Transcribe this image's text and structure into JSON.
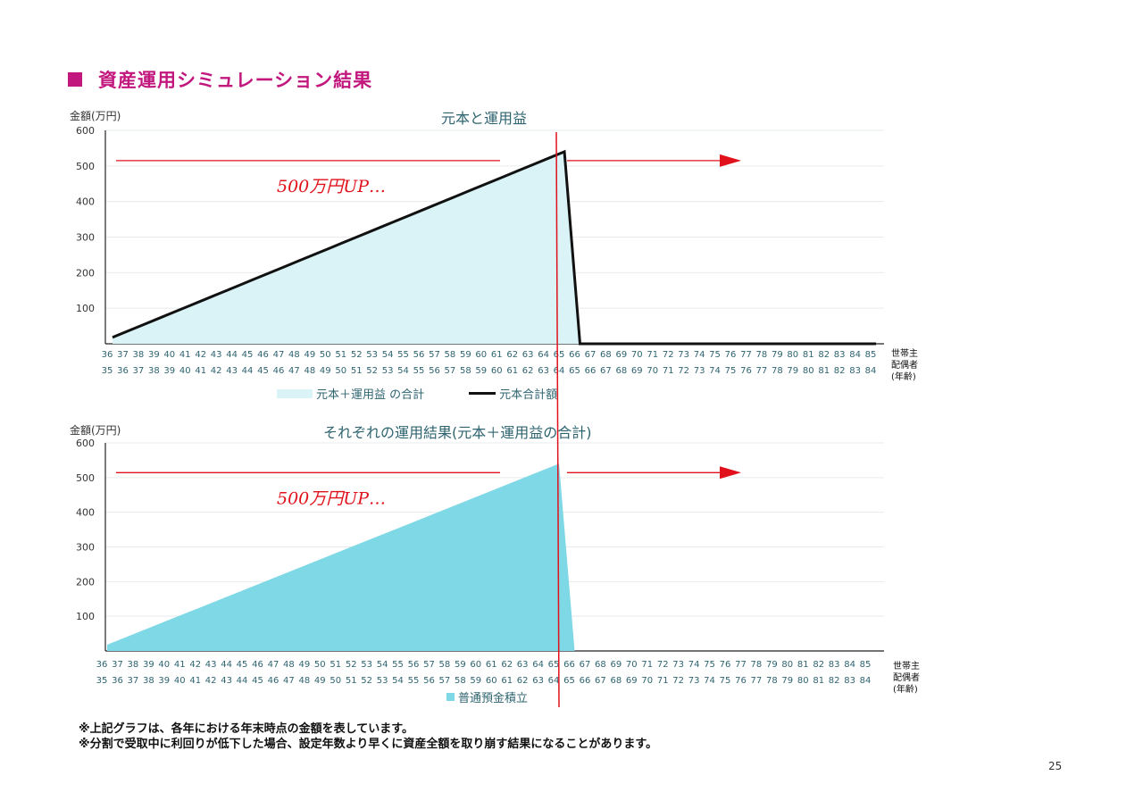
{
  "page": {
    "title": "資産運用シミュレーション結果",
    "page_number": "25",
    "notes": [
      "※上記グラフは、各年における年末時点の金額を表しています。",
      "※分割で受取中に利回りが低下した場合、設定年数より早くに資産全額を取り崩す結果になることがあります。"
    ],
    "age_axis_caption": [
      "世帯主",
      "配偶者",
      "(年齢)"
    ],
    "annotation": "500万円UP…",
    "annotation_color": "#e0111b",
    "accent_color": "#c2187e"
  },
  "chart_data": [
    {
      "type": "area",
      "title": "元本と運用益",
      "ylabel": "金額(万円)",
      "ylim": [
        0,
        600
      ],
      "yticks": [
        100,
        200,
        300,
        400,
        500,
        600
      ],
      "x_primary": [
        "36",
        "37",
        "38",
        "39",
        "40",
        "41",
        "42",
        "43",
        "44",
        "45",
        "46",
        "47",
        "48",
        "49",
        "50",
        "51",
        "52",
        "53",
        "54",
        "55",
        "56",
        "57",
        "58",
        "59",
        "60",
        "61",
        "62",
        "63",
        "64",
        "65",
        "66",
        "67",
        "68",
        "69",
        "70",
        "71",
        "72",
        "73",
        "74",
        "75",
        "76",
        "77",
        "78",
        "79",
        "80",
        "81",
        "82",
        "83",
        "84",
        "85"
      ],
      "x_secondary": [
        "35",
        "36",
        "37",
        "38",
        "39",
        "40",
        "41",
        "42",
        "43",
        "44",
        "45",
        "46",
        "47",
        "48",
        "49",
        "50",
        "51",
        "52",
        "53",
        "54",
        "55",
        "56",
        "57",
        "58",
        "59",
        "60",
        "61",
        "62",
        "63",
        "64",
        "65",
        "66",
        "67",
        "68",
        "69",
        "70",
        "71",
        "72",
        "73",
        "74",
        "75",
        "76",
        "77",
        "78",
        "79",
        "80",
        "81",
        "82",
        "83",
        "84"
      ],
      "series": [
        {
          "name": "元本＋運用益 の合計",
          "kind": "area",
          "color": "#d9f3f7",
          "values": [
            18,
            36,
            54,
            72,
            90,
            108,
            126,
            144,
            162,
            180,
            198,
            216,
            234,
            252,
            270,
            288,
            306,
            324,
            342,
            360,
            378,
            396,
            414,
            432,
            450,
            468,
            486,
            504,
            522,
            540,
            0,
            0,
            0,
            0,
            0,
            0,
            0,
            0,
            0,
            0,
            0,
            0,
            0,
            0,
            0,
            0,
            0,
            0,
            0,
            0
          ]
        },
        {
          "name": "元本合計額",
          "kind": "line",
          "color": "#111111",
          "values": [
            18,
            36,
            54,
            72,
            90,
            108,
            126,
            144,
            162,
            180,
            198,
            216,
            234,
            252,
            270,
            288,
            306,
            324,
            342,
            360,
            378,
            396,
            414,
            432,
            450,
            468,
            486,
            504,
            522,
            540,
            0,
            0,
            0,
            0,
            0,
            0,
            0,
            0,
            0,
            0,
            0,
            0,
            0,
            0,
            0,
            0,
            0,
            0,
            0,
            0
          ]
        }
      ],
      "legend": "bottom"
    },
    {
      "type": "area",
      "title": "それぞれの運用結果(元本＋運用益の合計)",
      "ylabel": "金額(万円)",
      "ylim": [
        0,
        600
      ],
      "yticks": [
        100,
        200,
        300,
        400,
        500,
        600
      ],
      "x_primary": [
        "36",
        "37",
        "38",
        "39",
        "40",
        "41",
        "42",
        "43",
        "44",
        "45",
        "46",
        "47",
        "48",
        "49",
        "50",
        "51",
        "52",
        "53",
        "54",
        "55",
        "56",
        "57",
        "58",
        "59",
        "60",
        "61",
        "62",
        "63",
        "64",
        "65",
        "66",
        "67",
        "68",
        "69",
        "70",
        "71",
        "72",
        "73",
        "74",
        "75",
        "76",
        "77",
        "78",
        "79",
        "80",
        "81",
        "82",
        "83",
        "84",
        "85"
      ],
      "x_secondary": [
        "35",
        "36",
        "37",
        "38",
        "39",
        "40",
        "41",
        "42",
        "43",
        "44",
        "45",
        "46",
        "47",
        "48",
        "49",
        "50",
        "51",
        "52",
        "53",
        "54",
        "55",
        "56",
        "57",
        "58",
        "59",
        "60",
        "61",
        "62",
        "63",
        "64",
        "65",
        "66",
        "67",
        "68",
        "69",
        "70",
        "71",
        "72",
        "73",
        "74",
        "75",
        "76",
        "77",
        "78",
        "79",
        "80",
        "81",
        "82",
        "83",
        "84"
      ],
      "series": [
        {
          "name": "普通預金積立",
          "kind": "area",
          "color": "#7fd8e6",
          "values": [
            18,
            36,
            54,
            72,
            90,
            108,
            126,
            144,
            162,
            180,
            198,
            216,
            234,
            252,
            270,
            288,
            306,
            324,
            342,
            360,
            378,
            396,
            414,
            432,
            450,
            468,
            486,
            504,
            522,
            540,
            0,
            0,
            0,
            0,
            0,
            0,
            0,
            0,
            0,
            0,
            0,
            0,
            0,
            0,
            0,
            0,
            0,
            0,
            0,
            0
          ]
        }
      ],
      "legend": "bottom"
    }
  ]
}
